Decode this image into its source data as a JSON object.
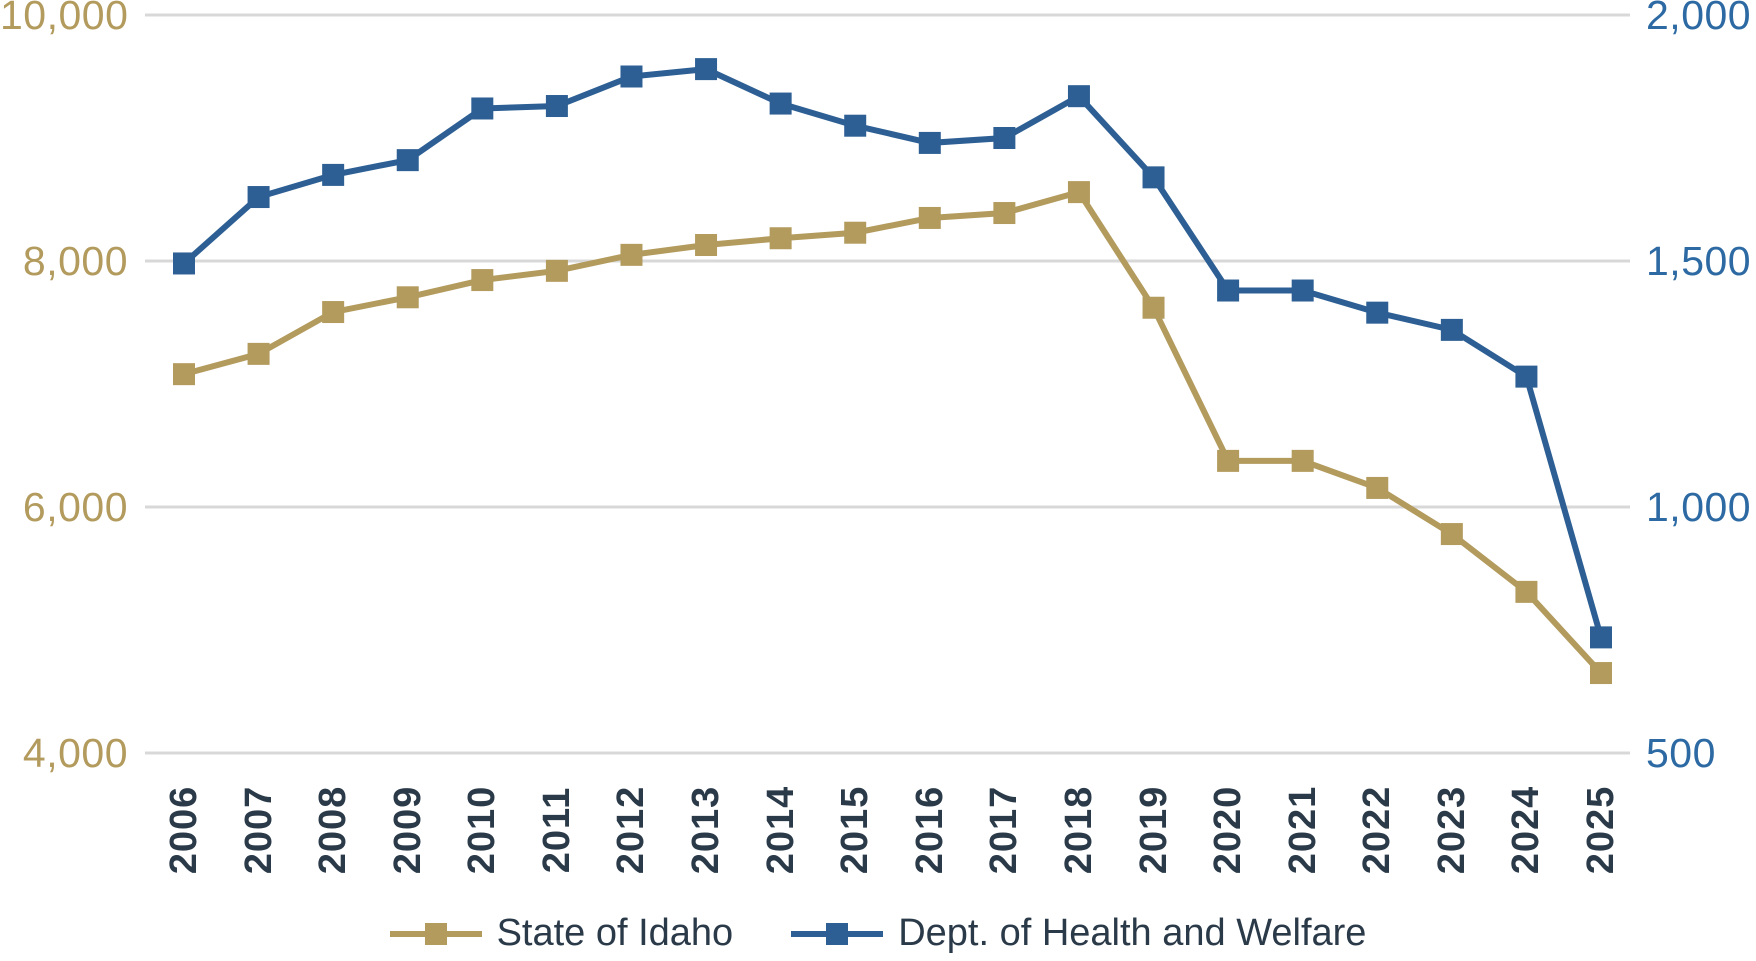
{
  "chart_data": {
    "type": "line",
    "x": [
      "2006",
      "2007",
      "2008",
      "2009",
      "2010",
      "2011",
      "2012",
      "2013",
      "2014",
      "2015",
      "2016",
      "2017",
      "2018",
      "2019",
      "2020",
      "2021",
      "2022",
      "2023",
      "2024",
      "2025"
    ],
    "series": [
      {
        "name": "State of Idaho",
        "axis": "left",
        "color": "#B39B5E",
        "marker": "square",
        "values": [
          7080,
          7245,
          7585,
          7705,
          7845,
          7920,
          8050,
          8130,
          8185,
          8230,
          8350,
          8390,
          8560,
          7620,
          6375,
          6375,
          6155,
          5780,
          5310,
          4650
        ]
      },
      {
        "name": "Dept. of Health and Welfare",
        "axis": "right",
        "color": "#2D5F94",
        "marker": "square",
        "values": [
          1495,
          1630,
          1675,
          1705,
          1810,
          1815,
          1875,
          1890,
          1820,
          1775,
          1740,
          1750,
          1835,
          1670,
          1440,
          1440,
          1395,
          1360,
          1265,
          735
        ]
      }
    ],
    "axes": {
      "left": {
        "min": 4000,
        "max": 10000,
        "tick_labels": [
          "10,000",
          "8,000",
          "6,000",
          "4,000"
        ],
        "tick_values": [
          10000,
          8000,
          6000,
          4000
        ],
        "label_color": "#B39B5E"
      },
      "right": {
        "min": 500,
        "max": 2000,
        "tick_labels": [
          "2,000",
          "1,500",
          "1,000",
          "500"
        ],
        "tick_values": [
          2000,
          1500,
          1000,
          500
        ],
        "label_color": "#2D6AA3"
      }
    },
    "grid": true,
    "gridline_color": "#D8D8D8",
    "x_label_color": "#2B3A49",
    "legend_text_color": "#2B3A49",
    "legend_position": "bottom",
    "title": ""
  }
}
